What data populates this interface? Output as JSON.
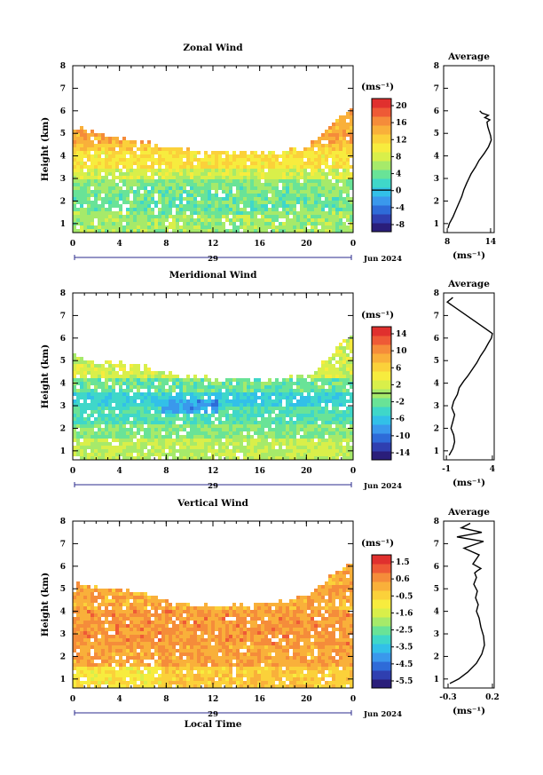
{
  "colors": {
    "scale": [
      "#2a1e7a",
      "#2f3fb0",
      "#2e6bd8",
      "#3a98ec",
      "#32c0e8",
      "#3fd7c9",
      "#69e397",
      "#a6ea6a",
      "#d9ef4a",
      "#f7ec3e",
      "#fbd13a",
      "#f9b03a",
      "#f58c3a",
      "#ee5a36",
      "#e0302e"
    ]
  },
  "chart_data": [
    {
      "type": "heatmap",
      "title": "Zonal Wind",
      "ylabel": "Height (km)",
      "xlabel": "",
      "date_day": "29",
      "date_month": "Jun 2024",
      "x_ticks": [
        "0",
        "4",
        "8",
        "12",
        "16",
        "20",
        "0"
      ],
      "y_ticks": [
        "1",
        "2",
        "3",
        "4",
        "5",
        "6",
        "7",
        "8"
      ],
      "xlim": [
        0,
        24
      ],
      "ylim": [
        0.6,
        8.0
      ],
      "colorbar": {
        "unit": "(ms⁻¹)",
        "ticks": [
          "20",
          "16",
          "12",
          "8",
          "4",
          "0",
          "-4",
          "-8"
        ],
        "range": [
          -10,
          22
        ],
        "zero_line": 0
      },
      "field": {
        "top_km": [
          [
            0,
            5.3
          ],
          [
            2,
            5.0
          ],
          [
            4,
            4.8
          ],
          [
            6,
            4.6
          ],
          [
            8,
            4.4
          ],
          [
            10,
            4.25
          ],
          [
            12,
            4.2
          ],
          [
            14,
            4.15
          ],
          [
            16,
            4.15
          ],
          [
            18,
            4.2
          ],
          [
            20,
            4.4
          ],
          [
            21,
            4.8
          ],
          [
            22,
            5.3
          ],
          [
            23,
            5.8
          ],
          [
            24,
            6.1
          ]
        ],
        "bands": [
          [
            4.6,
            15
          ],
          [
            4.2,
            13
          ],
          [
            3.5,
            11
          ],
          [
            2.9,
            8
          ],
          [
            2.3,
            5
          ],
          [
            1.6,
            4
          ],
          [
            0.6,
            6
          ]
        ],
        "low_region": {
          "x": [
            5.2,
            18.5
          ],
          "y": [
            1.4,
            2.6
          ],
          "value": 4
        }
      },
      "profile": {
        "title": "Average",
        "xlabel": "(ms⁻¹)",
        "xticks": [
          "8",
          "14"
        ],
        "xlim": [
          7.5,
          14.5
        ],
        "x": [
          8.1,
          8.3,
          8.8,
          9.2,
          9.6,
          10.0,
          10.3,
          10.7,
          11.0,
          11.3,
          11.9,
          12.4,
          13.1,
          13.7,
          14.1,
          14.0,
          13.8,
          13.6,
          13.5,
          13.9,
          13.2,
          13.7,
          12.8,
          12.5
        ],
        "y": [
          0.8,
          1.0,
          1.3,
          1.6,
          1.9,
          2.2,
          2.5,
          2.8,
          3.0,
          3.2,
          3.5,
          3.8,
          4.1,
          4.4,
          4.7,
          4.9,
          5.1,
          5.3,
          5.5,
          5.6,
          5.7,
          5.8,
          5.9,
          6.0
        ]
      }
    },
    {
      "type": "heatmap",
      "title": "Meridional Wind",
      "ylabel": "Height (km)",
      "xlabel": "",
      "date_day": "29",
      "date_month": "Jun 2024",
      "x_ticks": [
        "0",
        "4",
        "8",
        "12",
        "16",
        "20",
        "0"
      ],
      "y_ticks": [
        "1",
        "2",
        "3",
        "4",
        "5",
        "6",
        "7",
        "8"
      ],
      "xlim": [
        0,
        24
      ],
      "ylim": [
        0.6,
        8.0
      ],
      "colorbar": {
        "unit": "(ms⁻¹)",
        "ticks": [
          "14",
          "10",
          "6",
          "2",
          "-2",
          "-6",
          "-10",
          "-14"
        ],
        "range": [
          -16,
          16
        ],
        "zero_line": 0
      },
      "field": {
        "top_km": [
          [
            0,
            5.3
          ],
          [
            2,
            5.0
          ],
          [
            4,
            4.9
          ],
          [
            6,
            4.8
          ],
          [
            8,
            4.5
          ],
          [
            10,
            4.3
          ],
          [
            12,
            4.2
          ],
          [
            14,
            4.2
          ],
          [
            16,
            4.1
          ],
          [
            18,
            4.2
          ],
          [
            20,
            4.3
          ],
          [
            21,
            4.6
          ],
          [
            22,
            5.2
          ],
          [
            23,
            5.8
          ],
          [
            24,
            6.1
          ]
        ],
        "bands": [
          [
            4.3,
            2
          ],
          [
            3.6,
            -2
          ],
          [
            2.9,
            -5
          ],
          [
            2.2,
            -3
          ],
          [
            1.5,
            -1
          ],
          [
            0.6,
            1
          ]
        ],
        "low_region": {
          "x": [
            7.5,
            12.5
          ],
          "y": [
            2.6,
            3.3
          ],
          "value": -8
        }
      },
      "profile": {
        "title": "Average",
        "xlabel": "(ms⁻¹)",
        "xticks": [
          "-1",
          "4"
        ],
        "xlim": [
          -1.3,
          4.2
        ],
        "x": [
          -0.7,
          -0.3,
          -0.1,
          -0.2,
          -0.5,
          -0.3,
          -0.1,
          -0.4,
          -0.2,
          0.2,
          0.4,
          0.9,
          1.3,
          1.8,
          2.3,
          2.7,
          3.2,
          3.6,
          3.9,
          4.0,
          3.3,
          -0.9,
          -0.3
        ],
        "y": [
          0.8,
          1.1,
          1.4,
          1.7,
          2.0,
          2.3,
          2.6,
          2.9,
          3.2,
          3.5,
          3.8,
          4.1,
          4.3,
          4.6,
          4.9,
          5.2,
          5.5,
          5.8,
          6.0,
          6.2,
          6.4,
          7.6,
          7.8
        ]
      }
    },
    {
      "type": "heatmap",
      "title": "Vertical Wind",
      "ylabel": "Height (km)",
      "xlabel": "Local Time",
      "date_day": "29",
      "date_month": "Jun 2024",
      "x_ticks": [
        "0",
        "4",
        "8",
        "12",
        "16",
        "20",
        "0"
      ],
      "y_ticks": [
        "1",
        "2",
        "3",
        "4",
        "5",
        "6",
        "7",
        "8"
      ],
      "xlim": [
        0,
        24
      ],
      "ylim": [
        0.6,
        8.0
      ],
      "colorbar": {
        "unit": "(ms⁻¹)",
        "ticks": [
          "1.5",
          "0.6",
          "-0.5",
          "-1.6",
          "-2.5",
          "-3.5",
          "-4.5",
          "-5.5"
        ],
        "range": [
          -6.0,
          2.0
        ],
        "zero_line": null
      },
      "field": {
        "top_km": [
          [
            0,
            5.3
          ],
          [
            2,
            5.1
          ],
          [
            4,
            5.0
          ],
          [
            6,
            4.8
          ],
          [
            8,
            4.5
          ],
          [
            10,
            4.3
          ],
          [
            12,
            4.2
          ],
          [
            14,
            4.3
          ],
          [
            16,
            4.3
          ],
          [
            18,
            4.5
          ],
          [
            20,
            4.8
          ],
          [
            22,
            5.5
          ],
          [
            23,
            5.9
          ],
          [
            24,
            6.1
          ]
        ],
        "bands": [
          [
            4.0,
            0.2
          ],
          [
            2.5,
            0.5
          ],
          [
            1.5,
            0.3
          ],
          [
            0.6,
            -0.3
          ]
        ],
        "low_region": {
          "x": [
            0,
            7.5
          ],
          "y": [
            0.6,
            1.6
          ],
          "value": -0.8
        }
      },
      "profile": {
        "title": "Average",
        "xlabel": "(ms⁻¹)",
        "xticks": [
          "-0.3",
          "0.2"
        ],
        "xlim": [
          -0.35,
          0.22
        ],
        "x": [
          -0.28,
          -0.18,
          -0.08,
          0.02,
          0.08,
          0.11,
          0.1,
          0.07,
          0.05,
          0.02,
          0.04,
          0.01,
          0.03,
          -0.01,
          0.02,
          0.0,
          0.03,
          0.07,
          -0.02,
          0.05,
          -0.12,
          0.1,
          -0.2,
          0.08,
          -0.15,
          -0.05
        ],
        "y": [
          0.8,
          1.0,
          1.3,
          1.7,
          2.1,
          2.5,
          2.9,
          3.3,
          3.7,
          4.0,
          4.3,
          4.6,
          4.9,
          5.2,
          5.5,
          5.7,
          5.8,
          5.9,
          6.1,
          6.5,
          6.8,
          7.1,
          7.3,
          7.5,
          7.7,
          7.9
        ]
      }
    }
  ]
}
